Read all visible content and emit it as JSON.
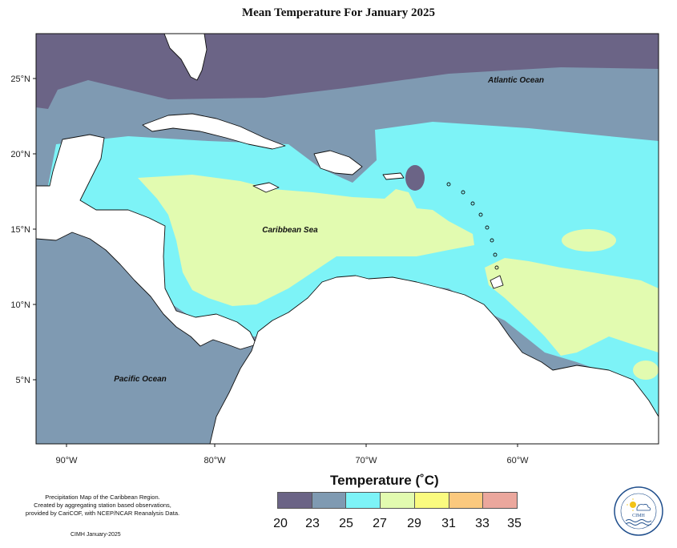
{
  "title": "Mean Temperature For January 2025",
  "map": {
    "region": "Caribbean",
    "lon_range": [
      -92,
      -51
    ],
    "lat_range": [
      1,
      28
    ],
    "lat_labels": [
      "25°N",
      "20°N",
      "15°N",
      "10°N",
      "5°N"
    ],
    "lon_labels": [
      "90°W",
      "80°W",
      "70°W",
      "60°W"
    ],
    "ocean_labels": {
      "atlantic": "Atlantic Ocean",
      "caribbean": "Caribbean Sea",
      "pacific": "Pacific Ocean"
    }
  },
  "legend": {
    "title": "Temperature (˚C)",
    "ticks": [
      "20",
      "23",
      "25",
      "27",
      "29",
      "31",
      "33",
      "35"
    ],
    "colors": [
      "#6b6486",
      "#7f9ab2",
      "#7df3f7",
      "#e2fbb0",
      "#fafb7f",
      "#fbc97e",
      "#eba79d"
    ]
  },
  "notes": {
    "line1": "Precipitation Map of the Caribbean Region.",
    "line2": "Created by aggregating station based observations,",
    "line3": "provided by CariCOF, with NCEP/NCAR Reanalysis Data.",
    "credit": "CIMH January-2025"
  },
  "logo": {
    "text": "CIMH"
  }
}
